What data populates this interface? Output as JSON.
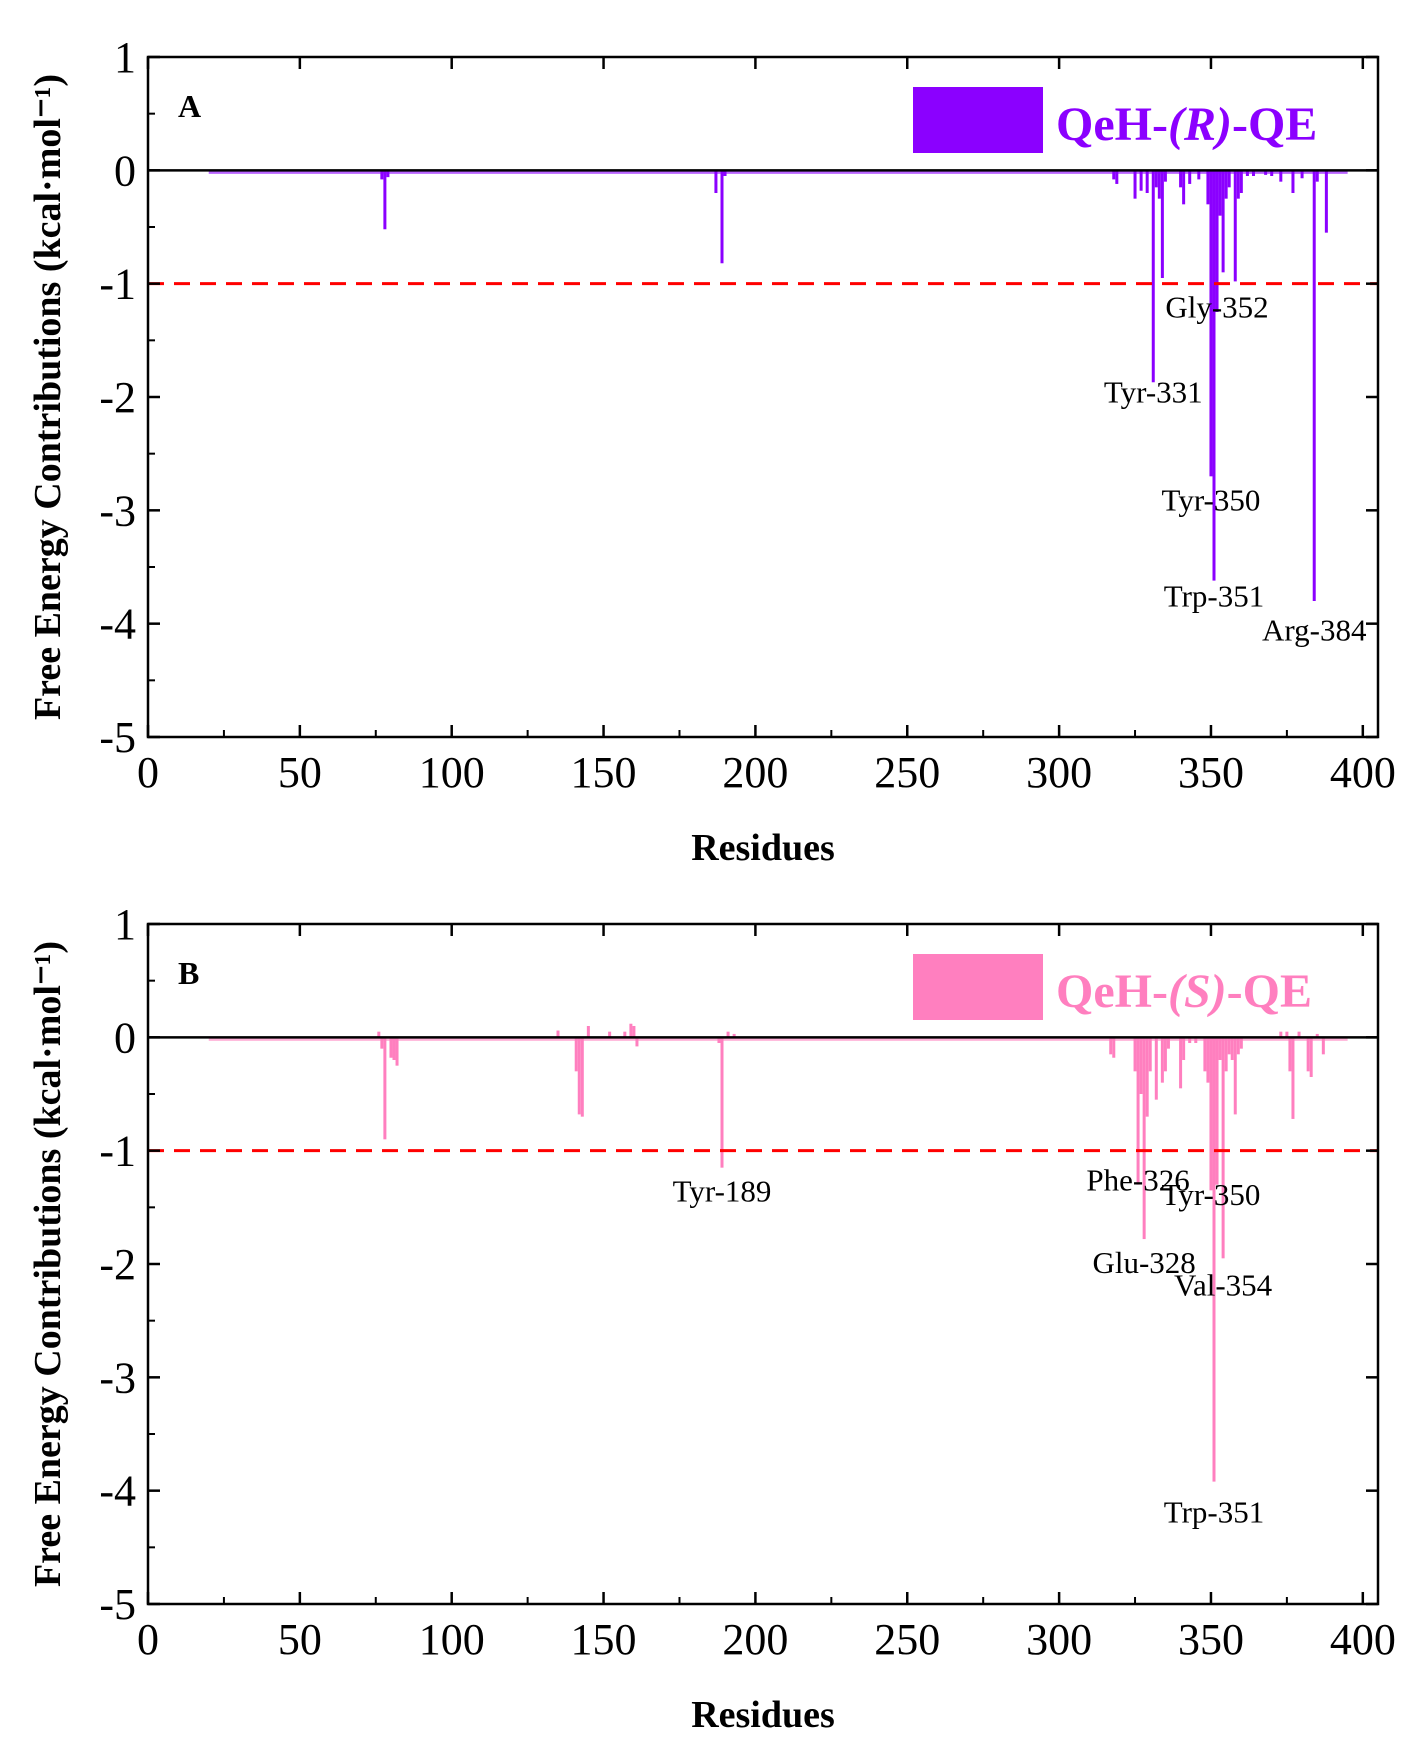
{
  "chart_data": [
    {
      "panel": "A",
      "type": "bar",
      "series_name_parts": [
        "QeH-",
        "(R)",
        "-QE"
      ],
      "color": "#8B00FF",
      "xlabel": "Residues",
      "ylabel": "Free Energy Contributions (kcal·mol⁻¹)",
      "xlim": [
        0,
        405
      ],
      "ylim": [
        -5,
        1
      ],
      "xticks": [
        0,
        50,
        100,
        150,
        200,
        250,
        300,
        350,
        400
      ],
      "yticks": [
        1,
        0,
        -1,
        -2,
        -3,
        -4,
        -5
      ],
      "threshold": -1,
      "bars": [
        [
          77,
          -0.08
        ],
        [
          78,
          -0.52
        ],
        [
          79,
          -0.06
        ],
        [
          187,
          -0.2
        ],
        [
          189,
          -0.82
        ],
        [
          190,
          -0.05
        ],
        [
          318,
          -0.08
        ],
        [
          319,
          -0.12
        ],
        [
          325,
          -0.25
        ],
        [
          327,
          -0.18
        ],
        [
          329,
          -0.2
        ],
        [
          331,
          -1.87
        ],
        [
          332,
          -0.15
        ],
        [
          333,
          -0.25
        ],
        [
          334,
          -0.95
        ],
        [
          335,
          -0.1
        ],
        [
          340,
          -0.15
        ],
        [
          341,
          -0.3
        ],
        [
          343,
          -0.12
        ],
        [
          346,
          -0.08
        ],
        [
          349,
          -0.3
        ],
        [
          350,
          -2.7
        ],
        [
          351,
          -3.62
        ],
        [
          352,
          -1.25
        ],
        [
          353,
          -0.4
        ],
        [
          354,
          -0.9
        ],
        [
          355,
          -0.25
        ],
        [
          356,
          -0.15
        ],
        [
          358,
          -0.98
        ],
        [
          359,
          -0.25
        ],
        [
          360,
          -0.2
        ],
        [
          362,
          -0.05
        ],
        [
          364,
          -0.05
        ],
        [
          368,
          -0.04
        ],
        [
          370,
          -0.05
        ],
        [
          373,
          -0.1
        ],
        [
          377,
          -0.2
        ],
        [
          380,
          -0.07
        ],
        [
          384,
          -3.8
        ],
        [
          385,
          -0.1
        ],
        [
          388,
          -0.55
        ]
      ],
      "annotations": [
        {
          "text": "Gly-352",
          "x": 352,
          "y": -1.3
        },
        {
          "text": "Tyr-331",
          "x": 331,
          "y": -2.05
        },
        {
          "text": "Tyr-350",
          "x": 350,
          "y": -3.0
        },
        {
          "text": "Trp-351",
          "x": 351,
          "y": -3.85
        },
        {
          "text": "Arg-384",
          "x": 384,
          "y": -4.15
        }
      ]
    },
    {
      "panel": "B",
      "type": "bar",
      "series_name_parts": [
        "QeH-",
        "(S)",
        "-QE"
      ],
      "color": "#FF7FBF",
      "xlabel": "Residues",
      "ylabel": "Free Energy Contributions (kcal·mol⁻¹)",
      "xlim": [
        0,
        405
      ],
      "ylim": [
        -5,
        1
      ],
      "xticks": [
        0,
        50,
        100,
        150,
        200,
        250,
        300,
        350,
        400
      ],
      "yticks": [
        1,
        0,
        -1,
        -2,
        -3,
        -4,
        -5
      ],
      "threshold": -1,
      "bars": [
        [
          76,
          0.05
        ],
        [
          77,
          -0.1
        ],
        [
          78,
          -0.9
        ],
        [
          80,
          -0.18
        ],
        [
          81,
          -0.2
        ],
        [
          82,
          -0.25
        ],
        [
          135,
          0.06
        ],
        [
          141,
          -0.3
        ],
        [
          142,
          -0.68
        ],
        [
          143,
          -0.7
        ],
        [
          145,
          0.1
        ],
        [
          152,
          0.05
        ],
        [
          157,
          0.05
        ],
        [
          159,
          0.12
        ],
        [
          160,
          0.1
        ],
        [
          161,
          -0.08
        ],
        [
          188,
          -0.05
        ],
        [
          189,
          -1.15
        ],
        [
          191,
          0.05
        ],
        [
          193,
          0.03
        ],
        [
          317,
          -0.15
        ],
        [
          318,
          -0.18
        ],
        [
          325,
          -0.3
        ],
        [
          326,
          -1.3
        ],
        [
          327,
          -0.5
        ],
        [
          328,
          -1.78
        ],
        [
          329,
          -0.7
        ],
        [
          330,
          -0.3
        ],
        [
          332,
          -0.55
        ],
        [
          334,
          -0.4
        ],
        [
          335,
          -0.3
        ],
        [
          336,
          -0.1
        ],
        [
          340,
          -0.45
        ],
        [
          341,
          -0.2
        ],
        [
          343,
          -0.05
        ],
        [
          345,
          -0.05
        ],
        [
          348,
          -0.3
        ],
        [
          349,
          -0.4
        ],
        [
          350,
          -1.35
        ],
        [
          351,
          -3.92
        ],
        [
          352,
          -1.3
        ],
        [
          353,
          -0.2
        ],
        [
          354,
          -1.95
        ],
        [
          355,
          -0.3
        ],
        [
          356,
          -0.15
        ],
        [
          357,
          -0.2
        ],
        [
          358,
          -0.68
        ],
        [
          359,
          -0.15
        ],
        [
          360,
          -0.1
        ],
        [
          373,
          0.05
        ],
        [
          375,
          0.05
        ],
        [
          376,
          -0.3
        ],
        [
          377,
          -0.72
        ],
        [
          379,
          0.05
        ],
        [
          382,
          -0.3
        ],
        [
          383,
          -0.35
        ],
        [
          385,
          0.03
        ],
        [
          387,
          -0.15
        ]
      ],
      "annotations": [
        {
          "text": "Tyr-189",
          "x": 189,
          "y": -1.45
        },
        {
          "text": "Phe-326",
          "x": 326,
          "y": -1.35
        },
        {
          "text": "Tyr-350",
          "x": 350,
          "y": -1.48
        },
        {
          "text": "Glu-328",
          "x": 328,
          "y": -2.08
        },
        {
          "text": "Val-354",
          "x": 354,
          "y": -2.28
        },
        {
          "text": "Trp-351",
          "x": 351,
          "y": -4.28
        }
      ]
    }
  ]
}
